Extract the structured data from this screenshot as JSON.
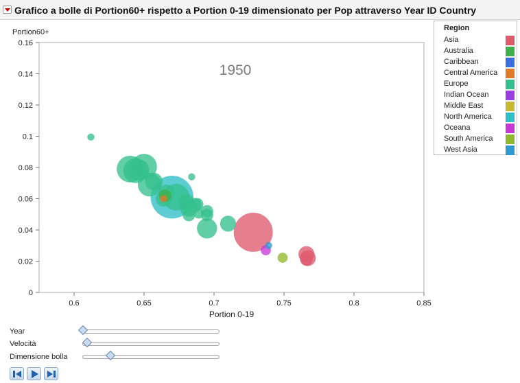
{
  "window": {
    "title": "Grafico a bolle di Portion60+  rispetto a Portion 0-19 dimensionato per Pop attraverso Year ID Country",
    "menu_icon": "red-triangle-dropdown-icon"
  },
  "chart_data": {
    "type": "scatter",
    "title": "",
    "xlabel": "Portion 0-19",
    "ylabel": "Portion60+",
    "xlim": [
      0.575,
      0.85
    ],
    "ylim": [
      0,
      0.16
    ],
    "xticks": [
      "0.6",
      "0.65",
      "0.7",
      "0.75",
      "0.8",
      "0.85"
    ],
    "yticks": [
      "0",
      "0.02",
      "0.04",
      "0.06",
      "0.08",
      "0.1",
      "0.12",
      "0.14",
      "0.16"
    ],
    "frame_label": "1950",
    "grid": false,
    "size_by": "Pop",
    "points": [
      {
        "region": "Europe",
        "x": 0.612,
        "y": 0.0995,
        "size": 1
      },
      {
        "region": "Europe",
        "x": 0.64,
        "y": 0.079,
        "size": 14
      },
      {
        "region": "Europe",
        "x": 0.644,
        "y": 0.078,
        "size": 12
      },
      {
        "region": "Europe",
        "x": 0.65,
        "y": 0.0805,
        "size": 13
      },
      {
        "region": "Europe",
        "x": 0.646,
        "y": 0.0785,
        "size": 9
      },
      {
        "region": "Europe",
        "x": 0.654,
        "y": 0.069,
        "size": 11
      },
      {
        "region": "Europe",
        "x": 0.657,
        "y": 0.071,
        "size": 6
      },
      {
        "region": "Europe",
        "x": 0.664,
        "y": 0.06,
        "size": 5
      },
      {
        "region": "Europe",
        "x": 0.666,
        "y": 0.064,
        "size": 5
      },
      {
        "region": "North America",
        "x": 0.67,
        "y": 0.061,
        "size": 36
      },
      {
        "region": "Europe",
        "x": 0.673,
        "y": 0.061,
        "size": 14
      },
      {
        "region": "Europe",
        "x": 0.684,
        "y": 0.074,
        "size": 1
      },
      {
        "region": "Europe",
        "x": 0.68,
        "y": 0.058,
        "size": 5
      },
      {
        "region": "Europe",
        "x": 0.682,
        "y": 0.054,
        "size": 6
      },
      {
        "region": "Europe",
        "x": 0.686,
        "y": 0.056,
        "size": 4
      },
      {
        "region": "Europe",
        "x": 0.688,
        "y": 0.0565,
        "size": 3
      },
      {
        "region": "Europe",
        "x": 0.682,
        "y": 0.0495,
        "size": 3
      },
      {
        "region": "Europe",
        "x": 0.689,
        "y": 0.0505,
        "size": 2
      },
      {
        "region": "Europe",
        "x": 0.695,
        "y": 0.052,
        "size": 3
      },
      {
        "region": "Europe",
        "x": 0.695,
        "y": 0.0495,
        "size": 3
      },
      {
        "region": "Europe",
        "x": 0.695,
        "y": 0.041,
        "size": 8
      },
      {
        "region": "Europe",
        "x": 0.71,
        "y": 0.044,
        "size": 5
      },
      {
        "region": "Australia",
        "x": 0.665,
        "y": 0.062,
        "size": 3
      },
      {
        "region": "Central America",
        "x": 0.664,
        "y": 0.06,
        "size": 1
      },
      {
        "region": "Asia",
        "x": 0.728,
        "y": 0.0385,
        "size": 30
      },
      {
        "region": "Oceana",
        "x": 0.737,
        "y": 0.027,
        "size": 2
      },
      {
        "region": "West Asia",
        "x": 0.739,
        "y": 0.03,
        "size": 1
      },
      {
        "region": "South America",
        "x": 0.749,
        "y": 0.0222,
        "size": 2
      },
      {
        "region": "Asia",
        "x": 0.766,
        "y": 0.0245,
        "size": 5
      },
      {
        "region": "Asia",
        "x": 0.767,
        "y": 0.022,
        "size": 5
      },
      {
        "region": "Asia",
        "x": 0.766,
        "y": 0.021,
        "size": 3
      }
    ],
    "legend": {
      "title": "Region",
      "placement": "right",
      "entries": [
        {
          "name": "Asia",
          "color": "#de5b6e"
        },
        {
          "name": "Australia",
          "color": "#3fb04b"
        },
        {
          "name": "Caribbean",
          "color": "#3b6fe0"
        },
        {
          "name": "Central America",
          "color": "#e07b28"
        },
        {
          "name": "Europe",
          "color": "#34c08e"
        },
        {
          "name": "Indian Ocean",
          "color": "#9a3fe0"
        },
        {
          "name": "Middle East",
          "color": "#c7b834"
        },
        {
          "name": "North America",
          "color": "#2fbfc7"
        },
        {
          "name": "Oceana",
          "color": "#c838d6"
        },
        {
          "name": "South America",
          "color": "#8fb82a"
        },
        {
          "name": "West Asia",
          "color": "#2f9ad0"
        }
      ]
    }
  },
  "controls": {
    "year": {
      "label": "Year",
      "value": 0.0
    },
    "speed": {
      "label": "Velocità",
      "value": 0.03
    },
    "bubble_size": {
      "label": "Dimensione bolla",
      "value": 0.2
    }
  },
  "playback": {
    "step_back_icon": "step-back-icon",
    "play_icon": "play-icon",
    "step_forward_icon": "step-forward-icon"
  }
}
